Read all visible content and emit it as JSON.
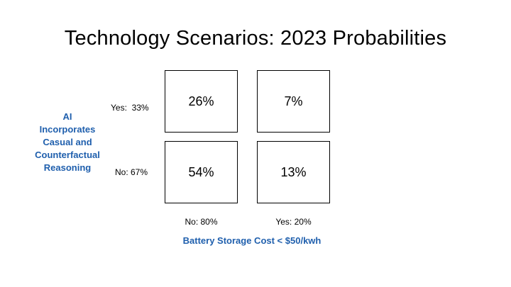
{
  "title": "Technology Scenarios: 2023 Probabilities",
  "y_axis": {
    "label_lines": [
      "AI",
      "Incorporates",
      "Casual and",
      "Counterfactual",
      "Reasoning"
    ],
    "rows": [
      {
        "label": "Yes:  33%"
      },
      {
        "label": "No: 67%"
      }
    ]
  },
  "x_axis": {
    "label": "Battery Storage Cost  < $50/kwh",
    "columns": [
      {
        "label": "No: 80%"
      },
      {
        "label": "Yes: 20%"
      }
    ]
  },
  "cells": {
    "yes_no": "26%",
    "yes_yes": "7%",
    "no_no": "54%",
    "no_yes": "13%"
  },
  "colors": {
    "axis_label": "#1f5fad",
    "border": "#000000"
  }
}
